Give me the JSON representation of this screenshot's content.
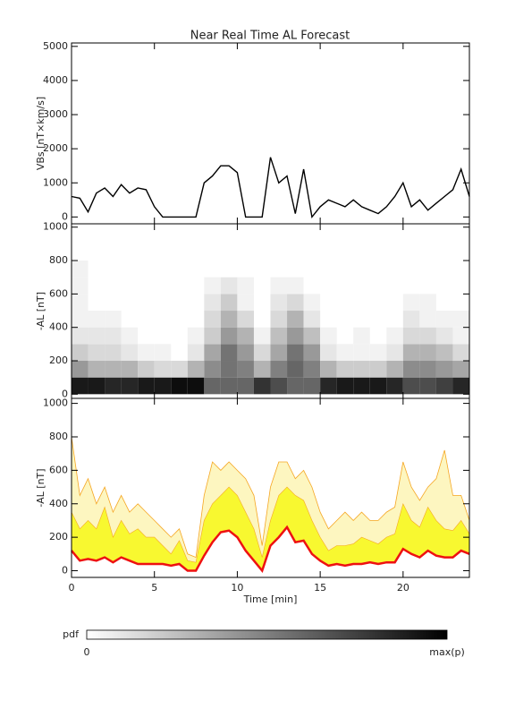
{
  "title": "Near Real Time AL Forecast",
  "chart_data": [
    {
      "type": "line",
      "ylabel": "VBs [nT×km/s]",
      "ylim": [
        -200,
        5100
      ],
      "yticks": [
        0,
        1000,
        2000,
        3000,
        4000,
        5000
      ],
      "xlim": [
        0,
        24
      ],
      "xticks": [
        0,
        5,
        10,
        15,
        20
      ],
      "xtick_labels": false,
      "x": [
        0,
        0.5,
        1,
        1.5,
        2,
        2.5,
        3,
        3.5,
        4,
        4.5,
        5,
        5.5,
        6,
        6.5,
        7,
        7.5,
        8,
        8.5,
        9,
        9.5,
        10,
        10.5,
        11,
        11.5,
        12,
        12.5,
        13,
        13.5,
        14,
        14.5,
        15,
        15.5,
        16,
        16.5,
        17,
        17.5,
        18,
        18.5,
        19,
        19.5,
        20,
        20.5,
        21,
        21.5,
        22,
        22.5,
        23,
        23.5,
        24
      ],
      "series": [
        {
          "color": "#000000",
          "values": [
            600,
            550,
            150,
            700,
            850,
            600,
            950,
            700,
            850,
            800,
            300,
            0,
            0,
            0,
            0,
            0,
            1000,
            1200,
            1500,
            1500,
            1300,
            0,
            0,
            0,
            1750,
            1000,
            1200,
            100,
            1400,
            0,
            300,
            500,
            400,
            300,
            500,
            300,
            200,
            100,
            300,
            600,
            1000,
            300,
            500,
            200,
            400,
            600,
            800,
            1400,
            600
          ]
        }
      ]
    },
    {
      "type": "heatmap",
      "ylabel": "-AL [nT]",
      "ylim": [
        -25,
        1020
      ],
      "yticks": [
        0,
        200,
        400,
        600,
        800,
        1000
      ],
      "xlim": [
        0,
        24
      ],
      "xticks": [
        0,
        5,
        10,
        15,
        20
      ],
      "xtick_labels": false,
      "xbins": [
        0,
        1,
        2,
        3,
        4,
        5,
        6,
        7,
        8,
        9,
        10,
        11,
        12,
        13,
        14,
        15,
        16,
        17,
        18,
        19,
        20,
        21,
        22,
        23,
        24
      ],
      "ybins": [
        0,
        100,
        200,
        300,
        400,
        500,
        600,
        700,
        800,
        900,
        1000
      ],
      "z": [
        [
          0.9,
          0.9,
          0.85,
          0.85,
          0.9,
          0.9,
          0.95,
          0.95,
          0.6,
          0.6,
          0.6,
          0.8,
          0.7,
          0.6,
          0.6,
          0.85,
          0.9,
          0.9,
          0.9,
          0.85,
          0.7,
          0.7,
          0.75,
          0.85
        ],
        [
          0.4,
          0.3,
          0.3,
          0.3,
          0.2,
          0.15,
          0.15,
          0.3,
          0.45,
          0.55,
          0.5,
          0.3,
          0.5,
          0.6,
          0.5,
          0.3,
          0.2,
          0.2,
          0.2,
          0.3,
          0.45,
          0.45,
          0.4,
          0.35
        ],
        [
          0.2,
          0.15,
          0.15,
          0.1,
          0.05,
          0.05,
          0,
          0.1,
          0.35,
          0.55,
          0.4,
          0.15,
          0.35,
          0.55,
          0.4,
          0.1,
          0.05,
          0.05,
          0.05,
          0.1,
          0.3,
          0.3,
          0.25,
          0.15
        ],
        [
          0.1,
          0.1,
          0.1,
          0.05,
          0,
          0,
          0,
          0.05,
          0.2,
          0.4,
          0.3,
          0.05,
          0.25,
          0.4,
          0.25,
          0.05,
          0,
          0.05,
          0,
          0.05,
          0.15,
          0.15,
          0.1,
          0.05
        ],
        [
          0.05,
          0.05,
          0.05,
          0,
          0,
          0,
          0,
          0,
          0.15,
          0.3,
          0.15,
          0,
          0.15,
          0.3,
          0.1,
          0,
          0,
          0,
          0,
          0,
          0.1,
          0.05,
          0.05,
          0.05
        ],
        [
          0.05,
          0,
          0,
          0,
          0,
          0,
          0,
          0,
          0.1,
          0.2,
          0.05,
          0,
          0.1,
          0.15,
          0.05,
          0,
          0,
          0,
          0,
          0,
          0.05,
          0.05,
          0,
          0
        ],
        [
          0.05,
          0,
          0,
          0,
          0,
          0,
          0,
          0,
          0.05,
          0.1,
          0.05,
          0,
          0.05,
          0.05,
          0,
          0,
          0,
          0,
          0,
          0,
          0,
          0,
          0,
          0
        ],
        [
          0.05,
          0,
          0,
          0,
          0,
          0,
          0,
          0,
          0,
          0,
          0,
          0,
          0,
          0,
          0,
          0,
          0,
          0,
          0,
          0,
          0,
          0,
          0,
          0
        ],
        [
          0,
          0,
          0,
          0,
          0,
          0,
          0,
          0,
          0,
          0,
          0,
          0,
          0,
          0,
          0,
          0,
          0,
          0,
          0,
          0,
          0,
          0,
          0,
          0
        ],
        [
          0,
          0,
          0,
          0,
          0,
          0,
          0,
          0,
          0,
          0,
          0,
          0,
          0,
          0,
          0,
          0,
          0,
          0,
          0,
          0,
          0,
          0,
          0,
          0
        ]
      ]
    },
    {
      "type": "band",
      "ylabel": "-AL [nT]",
      "xlabel": "Time [min]",
      "ylim": [
        -40,
        1030
      ],
      "yticks": [
        0,
        200,
        400,
        600,
        800,
        1000
      ],
      "xlim": [
        0,
        24
      ],
      "xticks": [
        0,
        5,
        10,
        15,
        20
      ],
      "xtick_labels": true,
      "x": [
        0,
        0.5,
        1,
        1.5,
        2,
        2.5,
        3,
        3.5,
        4,
        4.5,
        5,
        5.5,
        6,
        6.5,
        7,
        7.5,
        8,
        8.5,
        9,
        9.5,
        10,
        10.5,
        11,
        11.5,
        12,
        12.5,
        13,
        13.5,
        14,
        14.5,
        15,
        15.5,
        16,
        16.5,
        17,
        17.5,
        18,
        18.5,
        19,
        19.5,
        20,
        20.5,
        21,
        21.5,
        22,
        22.5,
        23,
        23.5,
        24
      ],
      "series": [
        {
          "color": "#ee1111",
          "values": [
            120,
            60,
            70,
            60,
            80,
            50,
            80,
            60,
            40,
            40,
            40,
            40,
            30,
            40,
            0,
            0,
            90,
            170,
            230,
            240,
            200,
            120,
            60,
            0,
            150,
            200,
            260,
            170,
            180,
            100,
            60,
            30,
            40,
            30,
            40,
            40,
            50,
            40,
            50,
            50,
            130,
            100,
            80,
            120,
            90,
            80,
            80,
            120,
            100
          ]
        },
        {
          "color": "#f8f830",
          "values": [
            350,
            250,
            300,
            250,
            380,
            200,
            300,
            220,
            250,
            200,
            200,
            150,
            100,
            180,
            60,
            50,
            300,
            400,
            450,
            500,
            450,
            350,
            250,
            80,
            300,
            450,
            500,
            450,
            420,
            300,
            200,
            120,
            150,
            150,
            160,
            200,
            180,
            160,
            200,
            220,
            400,
            300,
            260,
            380,
            300,
            250,
            240,
            300,
            220
          ]
        },
        {
          "color": "#f5a623",
          "values": [
            800,
            450,
            550,
            400,
            500,
            350,
            450,
            350,
            400,
            350,
            300,
            250,
            200,
            250,
            100,
            80,
            450,
            650,
            600,
            650,
            600,
            550,
            450,
            150,
            500,
            650,
            650,
            550,
            600,
            500,
            350,
            250,
            300,
            350,
            300,
            350,
            300,
            300,
            350,
            380,
            650,
            500,
            420,
            500,
            550,
            720,
            450,
            450,
            300
          ]
        }
      ]
    }
  ],
  "colorbar": {
    "label": "pdf",
    "min_label": "0",
    "max_label": "max(p)"
  }
}
